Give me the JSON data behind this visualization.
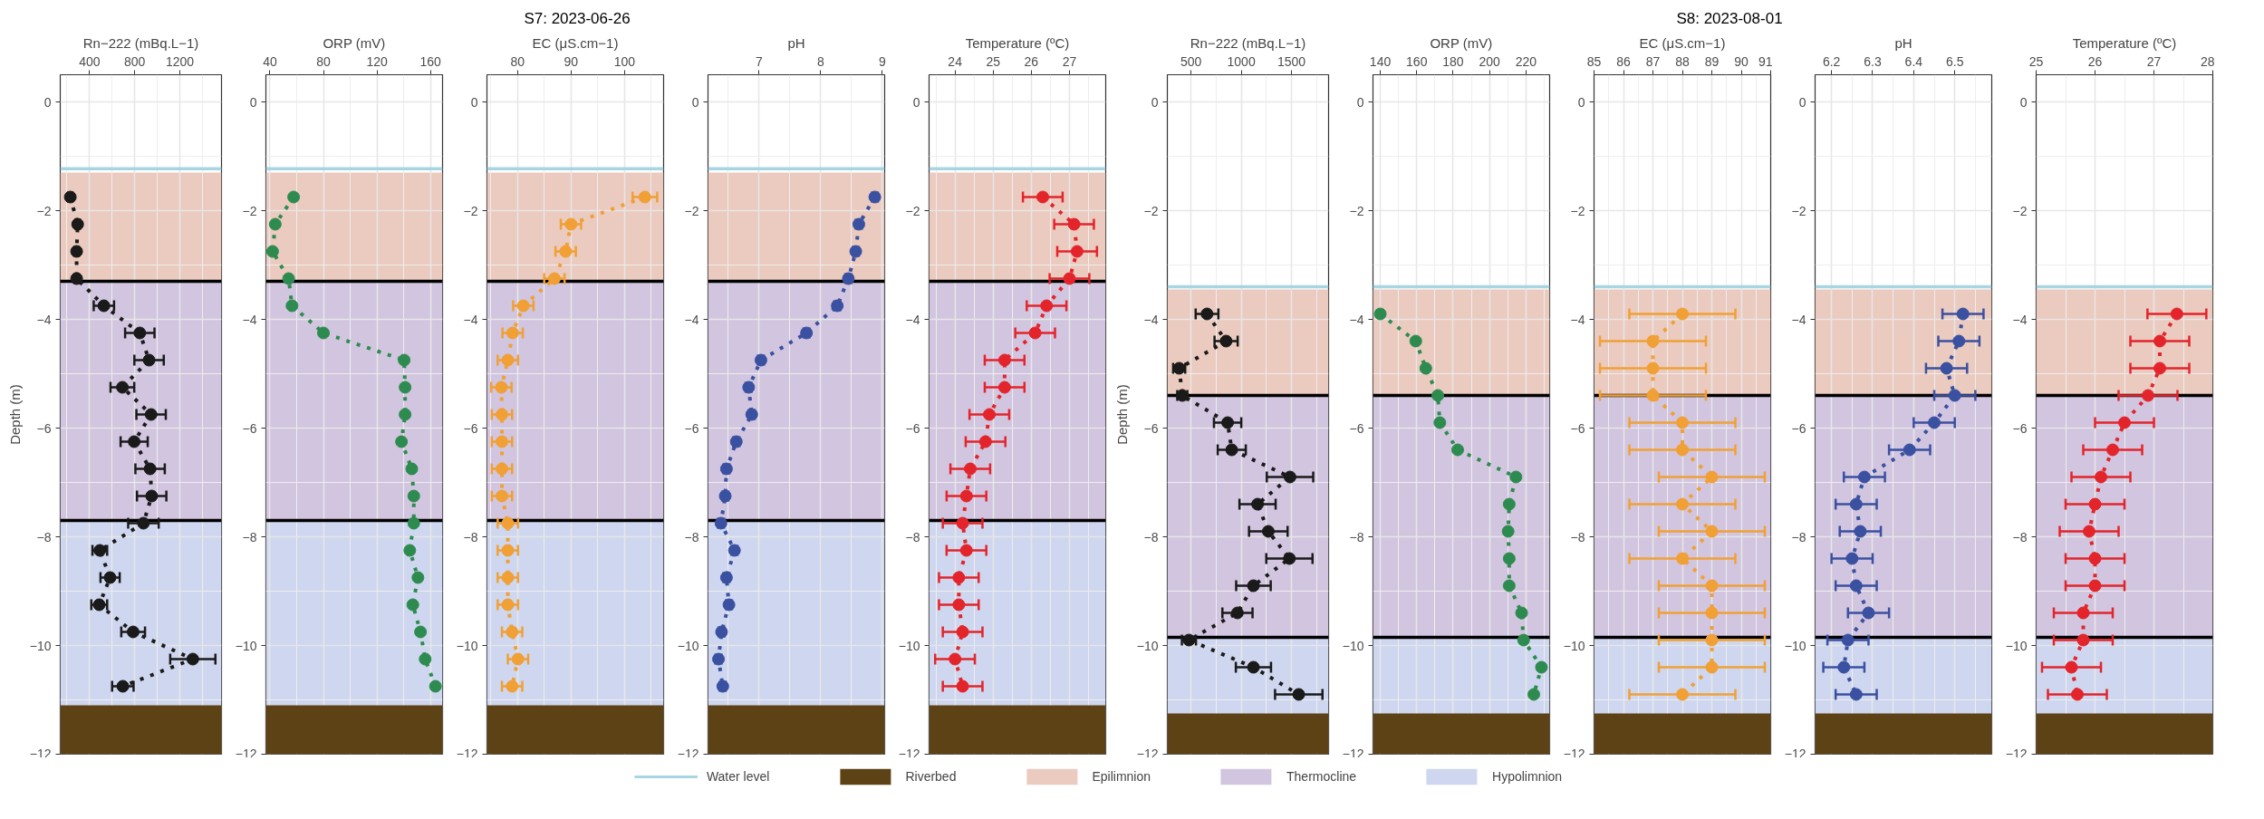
{
  "chart_data": [
    {
      "type": "line",
      "xlabel": "Rn−222 (mBq.L−1)",
      "ylabel": "Depth (m)",
      "xlim": [
        141,
        1568
      ],
      "xticks": [
        400,
        800,
        1200
      ],
      "ylim": [
        -12,
        0.5
      ],
      "yticks": [
        -12,
        -10,
        -8,
        -6,
        -4,
        -2,
        0
      ],
      "grid": true,
      "marker": "circle",
      "line_style": "dotted",
      "legend": "bottom",
      "bands": [
        {
          "axis": "y",
          "from": -11.1,
          "to": -12,
          "label": "Riverbed",
          "color": "#5c4214"
        },
        {
          "axis": "y",
          "from": -1.3,
          "to": -3.3,
          "label": "Epilimnion",
          "color": "#ebcabf"
        },
        {
          "axis": "y",
          "from": -3.3,
          "to": -7.7,
          "label": "Thermocline",
          "color": "#d2c5e0"
        },
        {
          "axis": "y",
          "from": -7.7,
          "to": -12,
          "label": "Hypolimnion",
          "color": "#ced7ef"
        }
      ],
      "ref_lines": [
        {
          "axis": "y",
          "value": -1.23,
          "label": "Water level",
          "color": "#a8d5e2"
        },
        {
          "axis": "y",
          "value": -3.3,
          "color": "#000000"
        },
        {
          "axis": "y",
          "value": -7.7,
          "color": "#000000"
        }
      ],
      "series": [
        {
          "color": "#1a1a1a",
          "x": [
            230,
            295,
            286,
            286,
            527,
            845,
            927,
            691,
            945,
            795,
            936,
            950,
            877,
            491,
            582,
            486,
            786,
            1314,
            695
          ],
          "values": [
            -1.75,
            -2.25,
            -2.75,
            -3.25,
            -3.75,
            -4.25,
            -4.75,
            -5.25,
            -5.75,
            -6.25,
            -6.75,
            -7.25,
            -7.75,
            -8.25,
            -8.75,
            -9.25,
            -9.75,
            -10.25,
            -10.75
          ],
          "xerrors": [
            20,
            20,
            20,
            20,
            90,
            130,
            130,
            105,
            130,
            120,
            130,
            130,
            135,
            65,
            85,
            70,
            105,
            200,
            95
          ]
        }
      ]
    },
    {
      "type": "line",
      "xlabel": "ORP (mV)",
      "xlim": [
        37,
        169
      ],
      "xticks": [
        40,
        80,
        120,
        160
      ],
      "ylim": [
        -12,
        0.5
      ],
      "yticks": [
        -12,
        -10,
        -8,
        -6,
        -4,
        -2,
        0
      ],
      "grid": true,
      "marker": "circle",
      "line_style": "dotted",
      "bands": [
        {
          "axis": "y",
          "from": -11.1,
          "to": -12,
          "color": "#5c4214"
        },
        {
          "axis": "y",
          "from": -1.3,
          "to": -3.3,
          "color": "#ebcabf"
        },
        {
          "axis": "y",
          "from": -3.3,
          "to": -7.7,
          "color": "#d2c5e0"
        },
        {
          "axis": "y",
          "from": -7.7,
          "to": -12,
          "color": "#ced7ef"
        }
      ],
      "ref_lines": [
        {
          "axis": "y",
          "value": -1.23,
          "color": "#a8d5e2"
        },
        {
          "axis": "y",
          "value": -3.3,
          "color": "#000000"
        },
        {
          "axis": "y",
          "value": -7.7,
          "color": "#000000"
        }
      ],
      "series": [
        {
          "color": "#2e8b4f",
          "x": [
            57.7,
            44,
            42,
            54,
            56.5,
            80,
            140.3,
            141,
            141,
            138.3,
            146,
            147.5,
            147.5,
            144.5,
            150.6,
            146.8,
            152.5,
            156,
            163.7
          ],
          "values": [
            -1.75,
            -2.25,
            -2.75,
            -3.25,
            -3.75,
            -4.25,
            -4.75,
            -5.25,
            -5.75,
            -6.25,
            -6.75,
            -7.25,
            -7.75,
            -8.25,
            -8.75,
            -9.25,
            -9.75,
            -10.25,
            -10.75
          ]
        }
      ]
    },
    {
      "type": "line",
      "title": "S7: 2023-06-26",
      "xlabel": "EC (μS.cm−1)",
      "xlim": [
        74.3,
        107.3
      ],
      "xticks": [
        80,
        90,
        100
      ],
      "ylim": [
        -12,
        0.5
      ],
      "yticks": [
        -12,
        -10,
        -8,
        -6,
        -4,
        -2,
        0
      ],
      "grid": true,
      "marker": "circle",
      "line_style": "dotted",
      "bands": [
        {
          "axis": "y",
          "from": -11.1,
          "to": -12,
          "color": "#5c4214"
        },
        {
          "axis": "y",
          "from": -1.3,
          "to": -3.3,
          "color": "#ebcabf"
        },
        {
          "axis": "y",
          "from": -3.3,
          "to": -7.7,
          "color": "#d2c5e0"
        },
        {
          "axis": "y",
          "from": -7.7,
          "to": -12,
          "color": "#ced7ef"
        }
      ],
      "ref_lines": [
        {
          "axis": "y",
          "value": -1.23,
          "color": "#a8d5e2"
        },
        {
          "axis": "y",
          "value": -3.3,
          "color": "#000000"
        },
        {
          "axis": "y",
          "value": -7.7,
          "color": "#000000"
        }
      ],
      "series": [
        {
          "color": "#f0a035",
          "x": [
            103.8,
            90,
            89,
            86.9,
            81.1,
            79.1,
            78.2,
            77,
            77.1,
            77.1,
            77.1,
            77.1,
            78.2,
            78.2,
            78.2,
            78.2,
            79,
            80.1,
            79
          ],
          "values": [
            -1.75,
            -2.25,
            -2.75,
            -3.25,
            -3.75,
            -4.25,
            -4.75,
            -5.25,
            -5.75,
            -6.25,
            -6.75,
            -7.25,
            -7.75,
            -8.25,
            -8.75,
            -9.25,
            -9.75,
            -10.25,
            -10.75
          ],
          "xerrors": [
            2.3,
            1.9,
            1.9,
            1.9,
            1.9,
            1.9,
            1.9,
            1.9,
            1.9,
            1.9,
            1.9,
            1.9,
            1.9,
            1.9,
            1.9,
            1.9,
            1.9,
            1.9,
            1.9
          ]
        }
      ]
    },
    {
      "type": "line",
      "xlabel": "pH",
      "xlim": [
        6.17,
        9.04
      ],
      "xticks": [
        7,
        8,
        9
      ],
      "ylim": [
        -12,
        0.5
      ],
      "yticks": [
        -12,
        -10,
        -8,
        -6,
        -4,
        -2,
        0
      ],
      "grid": true,
      "marker": "circle",
      "line_style": "dotted",
      "bands": [
        {
          "axis": "y",
          "from": -11.1,
          "to": -12,
          "color": "#5c4214"
        },
        {
          "axis": "y",
          "from": -1.3,
          "to": -3.3,
          "color": "#ebcabf"
        },
        {
          "axis": "y",
          "from": -3.3,
          "to": -7.7,
          "color": "#d2c5e0"
        },
        {
          "axis": "y",
          "from": -7.7,
          "to": -12,
          "color": "#ced7ef"
        }
      ],
      "ref_lines": [
        {
          "axis": "y",
          "value": -1.23,
          "color": "#a8d5e2"
        },
        {
          "axis": "y",
          "value": -3.3,
          "color": "#000000"
        },
        {
          "axis": "y",
          "value": -7.7,
          "color": "#000000"
        }
      ],
      "series": [
        {
          "color": "#3a50a0",
          "x": [
            8.88,
            8.62,
            8.57,
            8.45,
            8.27,
            7.77,
            7.03,
            6.83,
            6.88,
            6.63,
            6.47,
            6.45,
            6.38,
            6.6,
            6.47,
            6.51,
            6.39,
            6.34,
            6.41
          ],
          "values": [
            -1.75,
            -2.25,
            -2.75,
            -3.25,
            -3.75,
            -4.25,
            -4.75,
            -5.25,
            -5.75,
            -6.25,
            -6.75,
            -7.25,
            -7.75,
            -8.25,
            -8.75,
            -9.25,
            -9.75,
            -10.25,
            -10.75
          ],
          "xerrors": [
            0.05,
            0.05,
            0.05,
            0.05,
            0.05,
            0.05,
            0.05,
            0.05,
            0.05,
            0.05,
            0.05,
            0.05,
            0.05,
            0.05,
            0.05,
            0.05,
            0.05,
            0.05,
            0.05
          ]
        }
      ]
    },
    {
      "type": "line",
      "xlabel": "Temperature (ºC)",
      "xlim": [
        23.32,
        27.95
      ],
      "xticks": [
        24,
        25,
        26,
        27
      ],
      "ylim": [
        -12,
        0.5
      ],
      "yticks": [
        -12,
        -10,
        -8,
        -6,
        -4,
        -2,
        0
      ],
      "grid": true,
      "marker": "circle",
      "line_style": "dotted",
      "bands": [
        {
          "axis": "y",
          "from": -11.1,
          "to": -12,
          "color": "#5c4214"
        },
        {
          "axis": "y",
          "from": -1.3,
          "to": -3.3,
          "color": "#ebcabf"
        },
        {
          "axis": "y",
          "from": -3.3,
          "to": -7.7,
          "color": "#d2c5e0"
        },
        {
          "axis": "y",
          "from": -7.7,
          "to": -12,
          "color": "#ced7ef"
        }
      ],
      "ref_lines": [
        {
          "axis": "y",
          "value": -1.23,
          "color": "#a8d5e2"
        },
        {
          "axis": "y",
          "value": -3.3,
          "color": "#000000"
        },
        {
          "axis": "y",
          "value": -7.7,
          "color": "#000000"
        }
      ],
      "series": [
        {
          "color": "#e3242b",
          "x": [
            26.3,
            27.12,
            27.2,
            27.0,
            26.4,
            26.1,
            25.3,
            25.3,
            24.9,
            24.8,
            24.4,
            24.3,
            24.2,
            24.3,
            24.1,
            24.1,
            24.2,
            24.0,
            24.2
          ],
          "values": [
            -1.75,
            -2.25,
            -2.75,
            -3.25,
            -3.75,
            -4.25,
            -4.75,
            -5.25,
            -5.75,
            -6.25,
            -6.75,
            -7.25,
            -7.75,
            -8.25,
            -8.75,
            -9.25,
            -9.75,
            -10.25,
            -10.75
          ],
          "xerrors": [
            0.52,
            0.52,
            0.52,
            0.52,
            0.52,
            0.52,
            0.52,
            0.52,
            0.52,
            0.52,
            0.52,
            0.52,
            0.52,
            0.52,
            0.52,
            0.52,
            0.52,
            0.52,
            0.52
          ]
        }
      ]
    },
    {
      "type": "line",
      "xlabel": "Rn−222 (mBq.L−1)",
      "ylabel": "Depth (m)",
      "xlim": [
        264,
        1869
      ],
      "xticks": [
        500,
        1000,
        1500
      ],
      "ylim": [
        -12,
        0.5
      ],
      "yticks": [
        -12,
        -10,
        -8,
        -6,
        -4,
        -2,
        0
      ],
      "grid": true,
      "marker": "circle",
      "line_style": "dotted",
      "bands": [
        {
          "axis": "y",
          "from": -11.25,
          "to": -12,
          "color": "#5c4214"
        },
        {
          "axis": "y",
          "from": -3.45,
          "to": -5.4,
          "color": "#ebcabf"
        },
        {
          "axis": "y",
          "from": -5.4,
          "to": -9.85,
          "color": "#d2c5e0"
        },
        {
          "axis": "y",
          "from": -9.85,
          "to": -12,
          "color": "#ced7ef"
        }
      ],
      "ref_lines": [
        {
          "axis": "y",
          "value": -3.4,
          "color": "#a8d5e2"
        },
        {
          "axis": "y",
          "value": -5.4,
          "color": "#000000"
        },
        {
          "axis": "y",
          "value": -9.85,
          "color": "#000000"
        }
      ],
      "series": [
        {
          "color": "#1a1a1a",
          "x": [
            659,
            849,
            382,
            413,
            864,
            905,
            1485,
            1162,
            1269,
            1479,
            1121,
            962,
            479,
            1121,
            1572
          ],
          "values": [
            -3.9,
            -4.4,
            -4.9,
            -5.4,
            -5.9,
            -6.4,
            -6.9,
            -7.4,
            -7.9,
            -8.4,
            -8.9,
            -9.4,
            -9.9,
            -10.4,
            -10.9
          ],
          "xerrors": [
            113,
            115,
            60,
            50,
            136,
            140,
            231,
            180,
            192,
            230,
            172,
            150,
            70,
            175,
            236
          ]
        }
      ]
    },
    {
      "type": "line",
      "xlabel": "ORP (mV)",
      "xlim": [
        136,
        233
      ],
      "xticks": [
        140,
        160,
        180,
        200,
        220
      ],
      "ylim": [
        -12,
        0.5
      ],
      "yticks": [
        -12,
        -10,
        -8,
        -6,
        -4,
        -2,
        0
      ],
      "grid": true,
      "marker": "circle",
      "line_style": "dotted",
      "bands": [
        {
          "axis": "y",
          "from": -11.25,
          "to": -12,
          "color": "#5c4214"
        },
        {
          "axis": "y",
          "from": -3.45,
          "to": -5.4,
          "color": "#ebcabf"
        },
        {
          "axis": "y",
          "from": -5.4,
          "to": -9.85,
          "color": "#d2c5e0"
        },
        {
          "axis": "y",
          "from": -9.85,
          "to": -12,
          "color": "#ced7ef"
        }
      ],
      "ref_lines": [
        {
          "axis": "y",
          "value": -3.4,
          "color": "#a8d5e2"
        },
        {
          "axis": "y",
          "value": -5.4,
          "color": "#000000"
        },
        {
          "axis": "y",
          "value": -9.85,
          "color": "#000000"
        }
      ],
      "series": [
        {
          "color": "#2e8b4f",
          "x": [
            140,
            159.5,
            165,
            171.6,
            172.7,
            182.5,
            214.5,
            210.8,
            210.2,
            210.8,
            210.8,
            217.6,
            218.7,
            228.5,
            224.3
          ],
          "values": [
            -3.9,
            -4.4,
            -4.9,
            -5.4,
            -5.9,
            -6.4,
            -6.9,
            -7.4,
            -7.9,
            -8.4,
            -8.9,
            -9.4,
            -9.9,
            -10.4,
            -10.9
          ]
        }
      ]
    },
    {
      "type": "line",
      "title": "S8: 2023-08-01",
      "xlabel": "EC (μS.cm−1)",
      "xlim": [
        85,
        91
      ],
      "xticks": [
        85,
        86,
        87,
        88,
        89,
        90,
        91
      ],
      "ylim": [
        -12,
        0.5
      ],
      "yticks": [
        -12,
        -10,
        -8,
        -6,
        -4,
        -2,
        0
      ],
      "grid": true,
      "marker": "circle",
      "line_style": "dotted",
      "bands": [
        {
          "axis": "y",
          "from": -11.25,
          "to": -12,
          "color": "#5c4214"
        },
        {
          "axis": "y",
          "from": -3.45,
          "to": -5.4,
          "color": "#ebcabf"
        },
        {
          "axis": "y",
          "from": -5.4,
          "to": -9.85,
          "color": "#d2c5e0"
        },
        {
          "axis": "y",
          "from": -9.85,
          "to": -12,
          "color": "#ced7ef"
        }
      ],
      "ref_lines": [
        {
          "axis": "y",
          "value": -3.4,
          "color": "#a8d5e2"
        },
        {
          "axis": "y",
          "value": -5.4,
          "color": "#000000"
        },
        {
          "axis": "y",
          "value": -9.85,
          "color": "#000000"
        }
      ],
      "series": [
        {
          "color": "#f0a035",
          "x": [
            88,
            87,
            87,
            87,
            88,
            88,
            89,
            88,
            89,
            88,
            89,
            89,
            89,
            89,
            88
          ],
          "values": [
            -3.9,
            -4.4,
            -4.9,
            -5.4,
            -5.9,
            -6.4,
            -6.9,
            -7.4,
            -7.9,
            -8.4,
            -8.9,
            -9.4,
            -9.9,
            -10.4,
            -10.9
          ],
          "xerrors": [
            1.8,
            1.8,
            1.8,
            1.8,
            1.8,
            1.8,
            1.8,
            1.8,
            1.8,
            1.8,
            1.8,
            1.8,
            1.8,
            1.8,
            1.8
          ]
        }
      ]
    },
    {
      "type": "line",
      "xlabel": "pH",
      "xlim": [
        6.16,
        6.59
      ],
      "xticks": [
        6.2,
        6.3,
        6.4,
        6.5
      ],
      "ylim": [
        -12,
        0.5
      ],
      "yticks": [
        -12,
        -10,
        -8,
        -6,
        -4,
        -2,
        0
      ],
      "grid": true,
      "marker": "circle",
      "line_style": "dotted",
      "bands": [
        {
          "axis": "y",
          "from": -11.25,
          "to": -12,
          "color": "#5c4214"
        },
        {
          "axis": "y",
          "from": -3.45,
          "to": -5.4,
          "color": "#ebcabf"
        },
        {
          "axis": "y",
          "from": -5.4,
          "to": -9.85,
          "color": "#d2c5e0"
        },
        {
          "axis": "y",
          "from": -9.85,
          "to": -12,
          "color": "#ced7ef"
        }
      ],
      "ref_lines": [
        {
          "axis": "y",
          "value": -3.4,
          "color": "#a8d5e2"
        },
        {
          "axis": "y",
          "value": -5.4,
          "color": "#000000"
        },
        {
          "axis": "y",
          "value": -9.85,
          "color": "#000000"
        }
      ],
      "series": [
        {
          "color": "#3a50a0",
          "x": [
            6.52,
            6.51,
            6.48,
            6.5,
            6.45,
            6.39,
            6.28,
            6.26,
            6.27,
            6.25,
            6.26,
            6.29,
            6.24,
            6.23,
            6.26
          ],
          "values": [
            -3.9,
            -4.4,
            -4.9,
            -5.4,
            -5.9,
            -6.4,
            -6.9,
            -7.4,
            -7.9,
            -8.4,
            -8.9,
            -9.4,
            -9.9,
            -10.4,
            -10.9
          ],
          "xerrors": [
            0.05,
            0.05,
            0.05,
            0.05,
            0.05,
            0.05,
            0.05,
            0.05,
            0.05,
            0.05,
            0.05,
            0.05,
            0.05,
            0.05,
            0.05
          ]
        }
      ]
    },
    {
      "type": "line",
      "xlabel": "Temperature (ºC)",
      "xlim": [
        25,
        28
      ],
      "xticks": [
        25,
        26,
        27,
        28
      ],
      "ylim": [
        -12,
        0.5
      ],
      "yticks": [
        -12,
        -10,
        -8,
        -6,
        -4,
        -2,
        0
      ],
      "grid": true,
      "marker": "circle",
      "line_style": "dotted",
      "bands": [
        {
          "axis": "y",
          "from": -11.25,
          "to": -12,
          "color": "#5c4214"
        },
        {
          "axis": "y",
          "from": -3.45,
          "to": -5.4,
          "color": "#ebcabf"
        },
        {
          "axis": "y",
          "from": -5.4,
          "to": -9.85,
          "color": "#d2c5e0"
        },
        {
          "axis": "y",
          "from": -9.85,
          "to": -12,
          "color": "#ced7ef"
        }
      ],
      "ref_lines": [
        {
          "axis": "y",
          "value": -3.4,
          "color": "#a8d5e2"
        },
        {
          "axis": "y",
          "value": -5.4,
          "color": "#000000"
        },
        {
          "axis": "y",
          "value": -9.85,
          "color": "#000000"
        }
      ],
      "series": [
        {
          "color": "#e3242b",
          "x": [
            27.39,
            27.1,
            27.1,
            26.9,
            26.5,
            26.3,
            26.1,
            26.0,
            25.9,
            26.0,
            26.0,
            25.8,
            25.8,
            25.6,
            25.7
          ],
          "values": [
            -3.9,
            -4.4,
            -4.9,
            -5.4,
            -5.9,
            -6.4,
            -6.9,
            -7.4,
            -7.9,
            -8.4,
            -8.9,
            -9.4,
            -9.9,
            -10.4,
            -10.9
          ],
          "xerrors": [
            0.5,
            0.5,
            0.5,
            0.5,
            0.5,
            0.5,
            0.5,
            0.5,
            0.5,
            0.5,
            0.5,
            0.5,
            0.5,
            0.5,
            0.5
          ]
        }
      ]
    }
  ]
}
